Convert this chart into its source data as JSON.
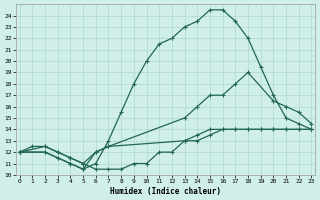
{
  "xlabel": "Humidex (Indice chaleur)",
  "bg_color": "#d0eeea",
  "grid_color": "#b0d8d0",
  "line_color": "#226655",
  "xlim": [
    0,
    23
  ],
  "ylim": [
    10,
    25
  ],
  "xticks": [
    0,
    1,
    2,
    3,
    4,
    5,
    6,
    7,
    8,
    9,
    10,
    11,
    12,
    13,
    14,
    15,
    16,
    17,
    18,
    19,
    20,
    21,
    22,
    23
  ],
  "yticks": [
    10,
    11,
    12,
    13,
    14,
    15,
    16,
    17,
    18,
    19,
    20,
    21,
    22,
    23,
    24
  ],
  "line1_x": [
    0,
    1,
    2,
    3,
    4,
    5,
    6,
    7,
    8,
    9,
    10,
    11,
    12,
    13,
    14,
    15,
    16,
    17,
    18,
    19,
    20,
    21,
    22,
    23
  ],
  "line1_y": [
    12,
    12.5,
    12.5,
    12,
    11.5,
    11,
    10.5,
    10.5,
    10.5,
    11,
    11,
    12,
    12,
    13,
    13.5,
    14,
    14,
    14,
    14,
    14,
    14,
    14,
    14,
    14
  ],
  "line2_x": [
    0,
    2,
    3,
    4,
    5,
    6,
    7,
    8,
    9,
    10,
    11,
    12,
    13,
    14,
    15,
    16,
    17,
    18,
    19,
    20,
    21,
    22,
    23
  ],
  "line2_y": [
    12,
    12,
    11.5,
    11,
    10.5,
    11,
    13,
    15.5,
    18,
    20,
    21.5,
    22,
    23,
    23.5,
    24.5,
    24.5,
    23.5,
    22,
    19.5,
    17,
    15,
    14.5,
    14
  ],
  "line3_x": [
    0,
    2,
    3,
    4,
    5,
    6,
    7,
    13,
    14,
    15,
    16,
    17,
    18,
    20,
    21,
    22,
    23
  ],
  "line3_y": [
    12,
    12,
    11.5,
    11,
    10.5,
    12,
    12.5,
    15,
    16,
    17,
    17,
    18,
    19,
    16.5,
    16,
    15.5,
    14.5
  ],
  "line4_x": [
    0,
    2,
    3,
    4,
    5,
    6,
    7,
    13,
    14,
    15,
    16,
    17,
    18,
    19,
    20,
    21,
    22,
    23
  ],
  "line4_y": [
    12,
    12.5,
    12,
    11.5,
    11,
    12,
    12.5,
    13,
    13,
    13.5,
    14,
    14,
    14,
    14,
    14,
    14,
    14,
    14
  ],
  "marker": "+",
  "markersize": 3,
  "linewidth": 0.9
}
